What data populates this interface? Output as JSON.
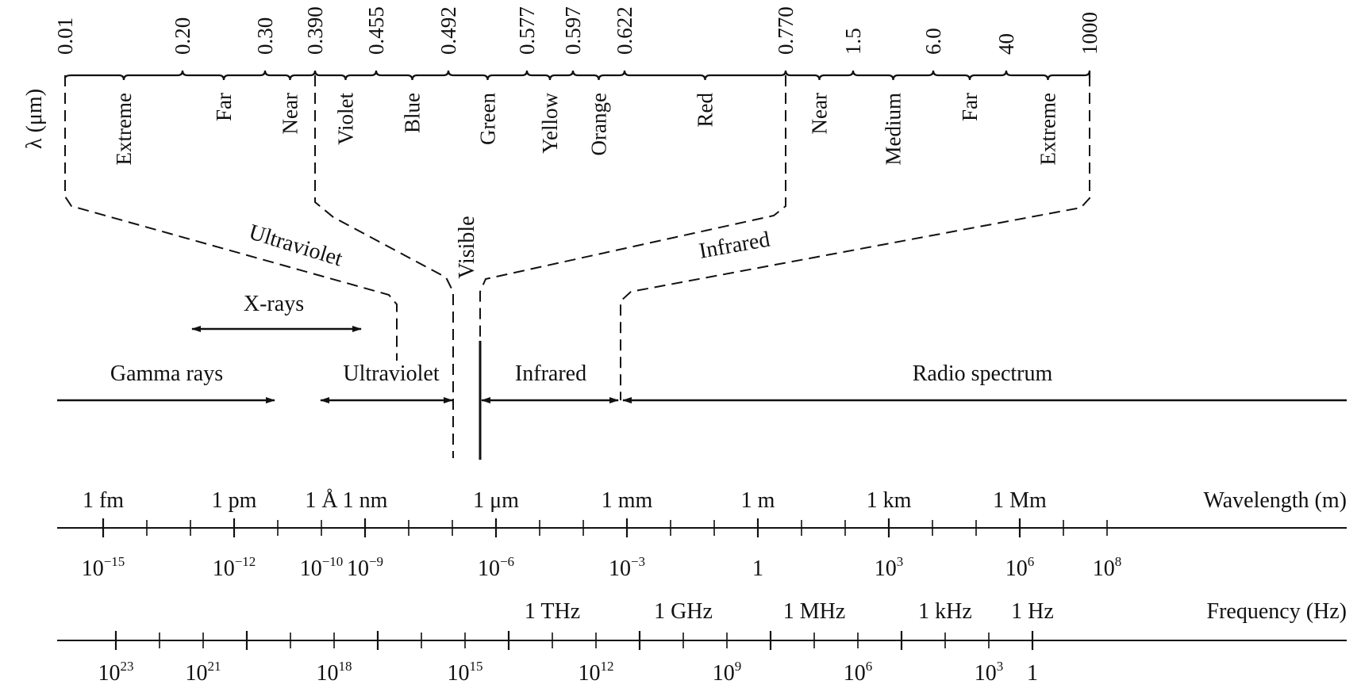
{
  "lambda_axis": {
    "label": "λ (μm)",
    "ticks": [
      "0.01",
      "0.20",
      "0.30",
      "0.390",
      "0.455",
      "0.492",
      "0.577",
      "0.597",
      "0.622",
      "0.770",
      "1.5",
      "6.0",
      "40",
      "1000"
    ],
    "bands": [
      "Extreme",
      "Far",
      "Near",
      "Violet",
      "Blue",
      "Green",
      "Yellow",
      "Orange",
      "Red",
      "Near",
      "Medium",
      "Far",
      "Extreme"
    ]
  },
  "group_labels": {
    "ultraviolet": "Ultraviolet",
    "visible": "Visible",
    "infrared": "Infrared"
  },
  "spectrum": {
    "xrays": "X-rays",
    "gamma": "Gamma rays",
    "ultraviolet": "Ultraviolet",
    "infrared": "Infrared",
    "radio": "Radio spectrum"
  },
  "wavelength_axis": {
    "title": "Wavelength (m)",
    "unit_labels": [
      "1 fm",
      "1 pm",
      "1 Å",
      "1 nm",
      "1 μm",
      "1 mm",
      "1 m",
      "1 km",
      "1 Mm"
    ],
    "powers": [
      {
        "base": "10",
        "exp": "−15"
      },
      {
        "base": "10",
        "exp": "−12"
      },
      {
        "base": "10",
        "exp": "−10"
      },
      {
        "base": "10",
        "exp": "−9"
      },
      {
        "base": "10",
        "exp": "−6"
      },
      {
        "base": "10",
        "exp": "−3"
      },
      {
        "base": "1",
        "exp": ""
      },
      {
        "base": "10",
        "exp": "3"
      },
      {
        "base": "10",
        "exp": "6"
      },
      {
        "base": "10",
        "exp": "8"
      }
    ]
  },
  "frequency_axis": {
    "title": "Frequency (Hz)",
    "unit_labels": [
      "1 THz",
      "1 GHz",
      "1 MHz",
      "1 kHz",
      "1 Hz"
    ],
    "powers": [
      {
        "base": "10",
        "exp": "23"
      },
      {
        "base": "10",
        "exp": "21"
      },
      {
        "base": "10",
        "exp": "18"
      },
      {
        "base": "10",
        "exp": "15"
      },
      {
        "base": "10",
        "exp": "12"
      },
      {
        "base": "10",
        "exp": "9"
      },
      {
        "base": "10",
        "exp": "6"
      },
      {
        "base": "10",
        "exp": "3"
      },
      {
        "base": "1",
        "exp": ""
      }
    ]
  }
}
